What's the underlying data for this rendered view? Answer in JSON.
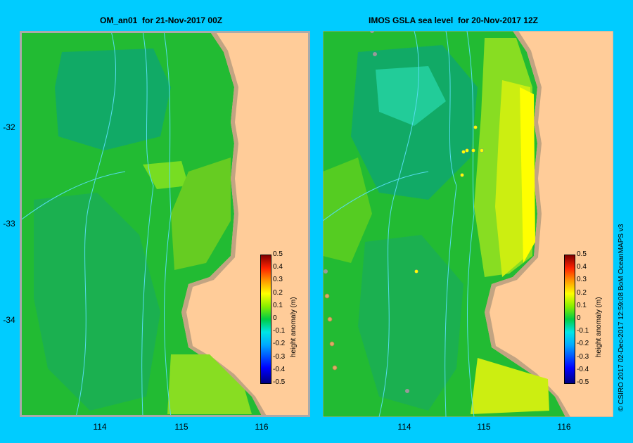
{
  "left_panel": {
    "title": "OM_an01  for 21-Nov-2017 00Z"
  },
  "right_panel": {
    "title": "IMOS GSLA sea level  for 20-Nov-2017 12Z"
  },
  "y_ticks": [
    "-32",
    "-33",
    "-34"
  ],
  "x_ticks": [
    "114",
    "115",
    "116"
  ],
  "colorbar": {
    "label": "height anomaly (m)",
    "ticks": [
      "0.5",
      "0.4",
      "0.3",
      "0.2",
      "0.1",
      "0",
      "-0.1",
      "-0.2",
      "-0.3",
      "-0.4",
      "-0.5"
    ],
    "range": [
      -0.5,
      0.5
    ]
  },
  "credit": "© CSIRO 2017    02-Dec-2017 12:59:08 BoM OceanMAPS v3",
  "colors": {
    "background": "#00ccff",
    "land": "#ffcc99",
    "shelf": "#c2a482",
    "anomaly_zero": "#22bb33",
    "anomaly_neg": "#11aa66",
    "anomaly_pos": "#99dd22",
    "anomaly_high": "#ddee11"
  }
}
